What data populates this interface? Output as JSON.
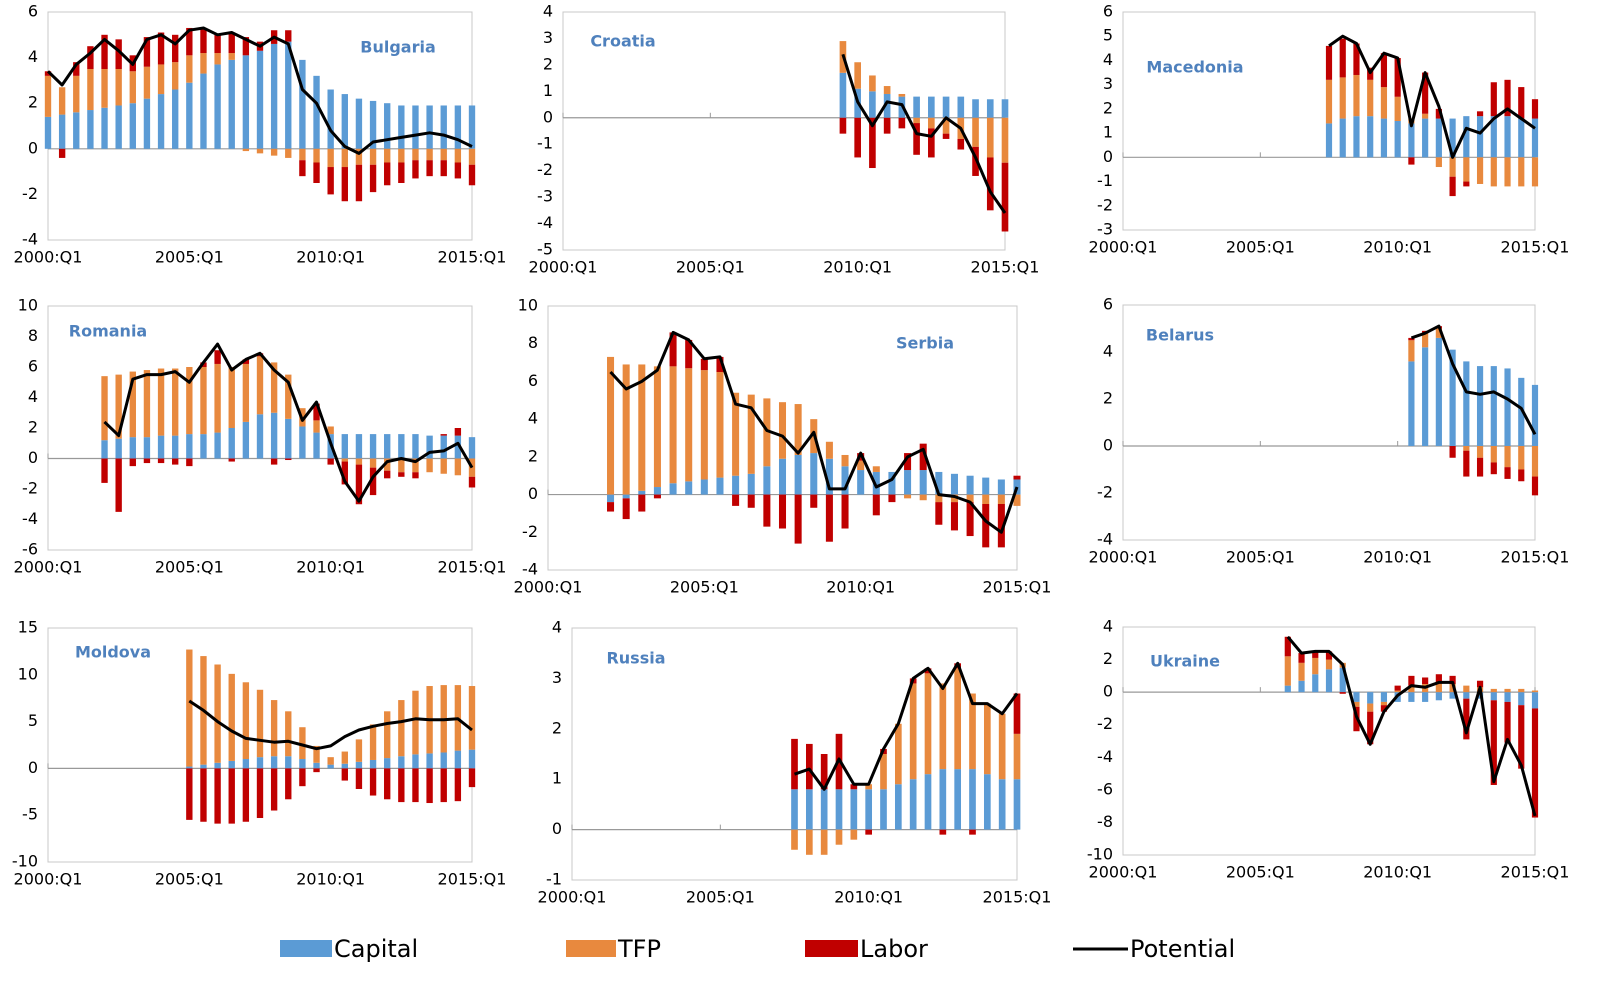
{
  "legend": [
    {
      "name": "Capital",
      "color": "#5b9bd5"
    },
    {
      "name": "TFP",
      "color": "#e8893e"
    },
    {
      "name": "Labor",
      "color": "#c00000"
    },
    {
      "name": "Potential",
      "color": "#000000"
    }
  ],
  "chart_data": [
    {
      "type": "bar",
      "title": "Bulgaria",
      "x": [
        2000,
        2000.5,
        2001,
        2001.5,
        2002,
        2002.5,
        2003,
        2003.5,
        2004,
        2004.5,
        2005,
        2005.5,
        2006,
        2006.5,
        2007,
        2007.5,
        2008,
        2008.5,
        2009,
        2009.5,
        2010,
        2010.5,
        2011,
        2011.5,
        2012,
        2012.5,
        2013,
        2013.5,
        2014,
        2014.5,
        2015
      ],
      "capital": [
        1.4,
        1.5,
        1.6,
        1.7,
        1.8,
        1.9,
        2.0,
        2.2,
        2.4,
        2.6,
        2.9,
        3.3,
        3.7,
        3.9,
        4.1,
        4.3,
        4.6,
        4.7,
        3.9,
        3.2,
        2.6,
        2.4,
        2.2,
        2.1,
        2.0,
        1.9,
        1.9,
        1.9,
        1.9,
        1.9,
        1.9
      ],
      "tfp": [
        1.8,
        1.2,
        1.6,
        1.8,
        1.7,
        1.6,
        1.4,
        1.4,
        1.3,
        1.2,
        1.2,
        0.9,
        0.5,
        0.3,
        -0.1,
        -0.2,
        -0.3,
        -0.4,
        -0.5,
        -0.6,
        -0.8,
        -0.8,
        -0.7,
        -0.7,
        -0.6,
        -0.6,
        -0.5,
        -0.5,
        -0.5,
        -0.6,
        -0.7
      ],
      "labor": [
        0.2,
        -0.4,
        0.6,
        1.0,
        1.5,
        1.3,
        0.7,
        1.3,
        1.4,
        1.2,
        1.2,
        1.1,
        0.8,
        0.9,
        0.8,
        0.4,
        0.6,
        0.5,
        -0.7,
        -0.9,
        -1.2,
        -1.5,
        -1.6,
        -1.2,
        -1.0,
        -0.9,
        -0.8,
        -0.7,
        -0.7,
        -0.7,
        -0.9
      ],
      "potential": [
        3.4,
        2.8,
        3.7,
        4.2,
        4.8,
        4.3,
        3.7,
        4.8,
        5.0,
        4.6,
        5.2,
        5.3,
        5.0,
        5.1,
        4.8,
        4.5,
        4.9,
        4.6,
        2.6,
        2.0,
        0.8,
        0.1,
        -0.2,
        0.3,
        0.4,
        0.5,
        0.6,
        0.7,
        0.6,
        0.4,
        0.1
      ],
      "xlim": [
        2000,
        2015
      ],
      "xticks": [
        {
          "value": 2000,
          "label": "2000:Q1"
        },
        {
          "value": 2005,
          "label": "2005:Q1"
        },
        {
          "value": 2010,
          "label": "2010:Q1"
        },
        {
          "value": 2015,
          "label": "2015:Q1"
        }
      ],
      "ylim": [
        -4,
        6
      ],
      "yticks": [
        -4,
        -2,
        0,
        2,
        4,
        6
      ]
    },
    {
      "type": "bar",
      "title": "Croatia",
      "x": [
        2009.5,
        2010,
        2010.5,
        2011,
        2011.5,
        2012,
        2012.5,
        2013,
        2013.5,
        2014,
        2014.5,
        2015
      ],
      "capital": [
        1.7,
        1.1,
        1.0,
        0.9,
        0.8,
        0.8,
        0.8,
        0.8,
        0.8,
        0.7,
        0.7,
        0.7
      ],
      "tfp": [
        1.2,
        1.0,
        0.6,
        0.3,
        0.1,
        -0.2,
        -0.4,
        -0.6,
        -0.8,
        -1.1,
        -1.5,
        -1.7
      ],
      "labor": [
        -0.6,
        -1.5,
        -1.9,
        -0.6,
        -0.4,
        -1.2,
        -1.1,
        -0.2,
        -0.4,
        -1.1,
        -2.0,
        -2.6
      ],
      "potential": [
        2.4,
        0.6,
        -0.3,
        0.6,
        0.5,
        -0.6,
        -0.7,
        0.0,
        -0.4,
        -1.5,
        -2.8,
        -3.6
      ],
      "xlim": [
        2000,
        2015
      ],
      "xticks": [
        {
          "value": 2000,
          "label": "2000:Q1"
        },
        {
          "value": 2005,
          "label": "2005:Q1"
        },
        {
          "value": 2010,
          "label": "2010:Q1"
        },
        {
          "value": 2015,
          "label": "2015:Q1"
        }
      ],
      "ylim": [
        -5,
        4
      ],
      "yticks": [
        -5,
        -4,
        -3,
        -2,
        -1,
        0,
        1,
        2,
        3,
        4
      ]
    },
    {
      "type": "bar",
      "title": "Macedonia",
      "x": [
        2007.5,
        2008,
        2008.5,
        2009,
        2009.5,
        2010,
        2010.5,
        2011,
        2011.5,
        2012,
        2012.5,
        2013,
        2013.5,
        2014,
        2014.5,
        2015
      ],
      "capital": [
        1.4,
        1.6,
        1.7,
        1.7,
        1.6,
        1.5,
        1.4,
        1.6,
        1.6,
        1.6,
        1.7,
        1.7,
        1.7,
        1.7,
        1.6,
        1.6
      ],
      "tfp": [
        1.8,
        1.7,
        1.7,
        1.5,
        1.3,
        1.0,
        0.2,
        0.2,
        -0.4,
        -0.8,
        -1.0,
        -1.1,
        -1.2,
        -1.2,
        -1.2,
        -1.2
      ],
      "labor": [
        1.4,
        1.6,
        1.3,
        0.5,
        1.4,
        1.6,
        -0.3,
        1.7,
        0.4,
        -0.8,
        -0.2,
        0.2,
        1.4,
        1.5,
        1.3,
        0.8
      ],
      "potential": [
        4.6,
        5.0,
        4.7,
        3.5,
        4.3,
        4.1,
        1.3,
        3.5,
        2.1,
        0.0,
        1.2,
        1.0,
        1.6,
        2.0,
        1.6,
        1.2
      ],
      "xlim": [
        2000,
        2015
      ],
      "xticks": [
        {
          "value": 2000,
          "label": "2000:Q1"
        },
        {
          "value": 2005,
          "label": "2005:Q1"
        },
        {
          "value": 2010,
          "label": "2010:Q1"
        },
        {
          "value": 2015,
          "label": "2015:Q1"
        }
      ],
      "ylim": [
        -3,
        6
      ],
      "yticks": [
        -3,
        -2,
        -1,
        0,
        1,
        2,
        3,
        4,
        5,
        6
      ]
    },
    {
      "type": "bar",
      "title": "Romania",
      "x": [
        2002,
        2002.5,
        2003,
        2003.5,
        2004,
        2004.5,
        2005,
        2005.5,
        2006,
        2006.5,
        2007,
        2007.5,
        2008,
        2008.5,
        2009,
        2009.5,
        2010,
        2010.5,
        2011,
        2011.5,
        2012,
        2012.5,
        2013,
        2013.5,
        2014,
        2014.5,
        2015
      ],
      "capital": [
        1.2,
        1.3,
        1.4,
        1.4,
        1.5,
        1.5,
        1.6,
        1.6,
        1.7,
        2.0,
        2.4,
        2.9,
        3.0,
        2.6,
        2.1,
        1.7,
        1.6,
        1.6,
        1.6,
        1.6,
        1.6,
        1.6,
        1.6,
        1.5,
        1.5,
        1.5,
        1.4
      ],
      "tfp": [
        4.2,
        4.2,
        4.3,
        4.4,
        4.4,
        4.4,
        4.4,
        4.4,
        4.5,
        4.0,
        3.8,
        3.8,
        3.3,
        2.9,
        1.2,
        0.8,
        0.5,
        -0.2,
        -0.4,
        -0.6,
        -0.8,
        -0.9,
        -0.9,
        -0.9,
        -1.0,
        -1.1,
        -1.2
      ],
      "labor": [
        -1.6,
        -3.5,
        -0.5,
        -0.3,
        -0.3,
        -0.4,
        -0.5,
        0.3,
        0.9,
        -0.2,
        0.3,
        0.2,
        -0.4,
        -0.1,
        0.0,
        1.1,
        -0.4,
        -1.5,
        -2.6,
        -1.8,
        -0.5,
        -0.3,
        -0.4,
        0.0,
        0.1,
        0.5,
        -0.7
      ],
      "potential": [
        2.4,
        1.5,
        5.2,
        5.5,
        5.5,
        5.7,
        5.0,
        6.3,
        7.5,
        5.8,
        6.5,
        6.9,
        5.8,
        5.0,
        2.5,
        3.7,
        1.0,
        -1.5,
        -2.8,
        -1.2,
        -0.2,
        0.0,
        -0.2,
        0.4,
        0.5,
        1.0,
        -0.6
      ],
      "xlim": [
        2000,
        2015
      ],
      "xticks": [
        {
          "value": 2000,
          "label": "2000:Q1"
        },
        {
          "value": 2005,
          "label": "2005:Q1"
        },
        {
          "value": 2010,
          "label": "2010:Q1"
        },
        {
          "value": 2015,
          "label": "2015:Q1"
        }
      ],
      "ylim": [
        -6,
        10
      ],
      "yticks": [
        -6,
        -4,
        -2,
        0,
        2,
        4,
        6,
        8,
        10
      ]
    },
    {
      "type": "bar",
      "title": "Serbia",
      "x": [
        2002,
        2002.5,
        2003,
        2003.5,
        2004,
        2004.5,
        2005,
        2005.5,
        2006,
        2006.5,
        2007,
        2007.5,
        2008,
        2008.5,
        2009,
        2009.5,
        2010,
        2010.5,
        2011,
        2011.5,
        2012,
        2012.5,
        2013,
        2013.5,
        2014,
        2014.5,
        2015
      ],
      "capital": [
        -0.4,
        -0.2,
        0.2,
        0.4,
        0.6,
        0.7,
        0.8,
        0.9,
        1.0,
        1.1,
        1.5,
        1.9,
        2.1,
        2.2,
        1.9,
        1.5,
        1.3,
        1.2,
        1.2,
        1.3,
        1.3,
        1.2,
        1.1,
        1.0,
        0.9,
        0.8,
        0.8
      ],
      "tfp": [
        7.3,
        6.9,
        6.7,
        6.4,
        6.2,
        6.0,
        5.8,
        5.6,
        4.4,
        4.2,
        3.6,
        3.0,
        2.7,
        1.8,
        0.9,
        0.6,
        0.5,
        0.3,
        0.0,
        -0.2,
        -0.3,
        -0.4,
        -0.4,
        -0.4,
        -0.5,
        -0.5,
        -0.6
      ],
      "labor": [
        -0.5,
        -1.1,
        -0.9,
        -0.2,
        1.8,
        1.5,
        0.6,
        0.8,
        -0.6,
        -0.7,
        -1.7,
        -1.8,
        -2.6,
        -0.7,
        -2.5,
        -1.8,
        0.4,
        -1.1,
        -0.4,
        0.9,
        1.4,
        -1.2,
        -1.5,
        -1.8,
        -2.3,
        -2.3,
        0.2
      ],
      "potential": [
        6.5,
        5.6,
        6.0,
        6.6,
        8.6,
        8.2,
        7.2,
        7.3,
        4.8,
        4.6,
        3.4,
        3.1,
        2.2,
        3.3,
        0.3,
        0.3,
        2.2,
        0.4,
        0.8,
        2.0,
        2.4,
        0.0,
        -0.1,
        -0.4,
        -1.4,
        -2.0,
        0.4
      ],
      "xlim": [
        2000,
        2015
      ],
      "xticks": [
        {
          "value": 2000,
          "label": "2000:Q1"
        },
        {
          "value": 2005,
          "label": "2005:Q1"
        },
        {
          "value": 2010,
          "label": "2010:Q1"
        },
        {
          "value": 2015,
          "label": "2015:Q1"
        }
      ],
      "ylim": [
        -4,
        10
      ],
      "yticks": [
        -4,
        -2,
        0,
        2,
        4,
        6,
        8,
        10
      ]
    },
    {
      "type": "bar",
      "title": "Belarus",
      "x": [
        2010.5,
        2011,
        2011.5,
        2012,
        2012.5,
        2013,
        2013.5,
        2014,
        2014.5,
        2015
      ],
      "capital": [
        3.6,
        4.2,
        4.6,
        4.1,
        3.6,
        3.4,
        3.4,
        3.3,
        2.9,
        2.6
      ],
      "tfp": [
        0.9,
        0.6,
        0.4,
        0.0,
        -0.2,
        -0.5,
        -0.7,
        -0.9,
        -1.0,
        -1.3
      ],
      "labor": [
        0.1,
        0.1,
        0.1,
        -0.5,
        -1.1,
        -0.8,
        -0.5,
        -0.5,
        -0.5,
        -0.8
      ],
      "potential": [
        4.6,
        4.8,
        5.1,
        3.5,
        2.3,
        2.2,
        2.3,
        2.0,
        1.6,
        0.5
      ],
      "xlim": [
        2000,
        2015
      ],
      "xticks": [
        {
          "value": 2000,
          "label": "2000:Q1"
        },
        {
          "value": 2005,
          "label": "2005:Q1"
        },
        {
          "value": 2010,
          "label": "2010:Q1"
        },
        {
          "value": 2015,
          "label": "2015:Q1"
        }
      ],
      "ylim": [
        -4,
        6
      ],
      "yticks": [
        -4,
        -2,
        0,
        2,
        4,
        6
      ]
    },
    {
      "type": "bar",
      "title": "Moldova",
      "x": [
        2005,
        2005.5,
        2006,
        2006.5,
        2007,
        2007.5,
        2008,
        2008.5,
        2009,
        2009.5,
        2010,
        2010.5,
        2011,
        2011.5,
        2012,
        2012.5,
        2013,
        2013.5,
        2014,
        2014.5,
        2015
      ],
      "capital": [
        0.2,
        0.4,
        0.6,
        0.8,
        1.0,
        1.2,
        1.3,
        1.3,
        1.0,
        0.6,
        0.4,
        0.5,
        0.7,
        0.9,
        1.1,
        1.3,
        1.5,
        1.6,
        1.7,
        1.9,
        2.0
      ],
      "tfp": [
        12.5,
        11.6,
        10.5,
        9.3,
        8.2,
        7.2,
        6.0,
        4.8,
        3.4,
        1.8,
        0.8,
        1.3,
        2.4,
        3.8,
        5.0,
        6.0,
        6.8,
        7.2,
        7.2,
        7.0,
        6.8
      ],
      "labor": [
        -5.5,
        -5.7,
        -5.9,
        -5.9,
        -5.7,
        -5.3,
        -4.5,
        -3.3,
        -1.9,
        -0.4,
        0.0,
        -1.3,
        -2.2,
        -2.9,
        -3.3,
        -3.6,
        -3.6,
        -3.7,
        -3.6,
        -3.5,
        -2.0
      ],
      "potential": [
        7.2,
        6.2,
        5.0,
        4.0,
        3.2,
        3.0,
        2.8,
        2.9,
        2.5,
        2.1,
        2.4,
        3.4,
        4.1,
        4.5,
        4.8,
        5.0,
        5.3,
        5.2,
        5.2,
        5.3,
        4.1
      ],
      "xlim": [
        2000,
        2015
      ],
      "xticks": [
        {
          "value": 2000,
          "label": "2000:Q1"
        },
        {
          "value": 2005,
          "label": "2005:Q1"
        },
        {
          "value": 2010,
          "label": "2010:Q1"
        },
        {
          "value": 2015,
          "label": "2015:Q1"
        }
      ],
      "ylim": [
        -10,
        15
      ],
      "yticks": [
        -10,
        -5,
        0,
        5,
        10,
        15
      ]
    },
    {
      "type": "bar",
      "title": "Russia",
      "x": [
        2007.5,
        2008,
        2008.5,
        2009,
        2009.5,
        2010,
        2010.5,
        2011,
        2011.5,
        2012,
        2012.5,
        2013,
        2013.5,
        2014,
        2014.5,
        2015
      ],
      "capital": [
        0.8,
        0.8,
        0.8,
        0.8,
        0.8,
        0.8,
        0.8,
        0.9,
        1.0,
        1.1,
        1.2,
        1.2,
        1.2,
        1.1,
        1.0,
        1.0
      ],
      "tfp": [
        -0.4,
        -0.5,
        -0.5,
        -0.3,
        -0.2,
        0.1,
        0.7,
        1.2,
        1.9,
        2.0,
        1.7,
        2.0,
        1.5,
        1.4,
        1.3,
        0.9
      ],
      "labor": [
        1.0,
        0.9,
        0.7,
        1.1,
        0.1,
        -0.1,
        0.1,
        0.0,
        0.1,
        0.1,
        -0.1,
        0.1,
        -0.1,
        0.0,
        0.0,
        0.8
      ],
      "potential": [
        1.1,
        1.2,
        0.8,
        1.4,
        0.9,
        0.9,
        1.6,
        2.1,
        3.0,
        3.2,
        2.8,
        3.3,
        2.5,
        2.5,
        2.3,
        2.7
      ],
      "xlim": [
        2000,
        2015
      ],
      "xticks": [
        {
          "value": 2000,
          "label": "2000:Q1"
        },
        {
          "value": 2005,
          "label": "2005:Q1"
        },
        {
          "value": 2010,
          "label": "2010:Q1"
        },
        {
          "value": 2015,
          "label": "2015:Q1"
        }
      ],
      "ylim": [
        -1,
        4
      ],
      "yticks": [
        -1,
        0,
        1,
        2,
        3,
        4
      ]
    },
    {
      "type": "bar",
      "title": "Ukraine",
      "x": [
        2006,
        2006.5,
        2007,
        2007.5,
        2008,
        2008.5,
        2009,
        2009.5,
        2010,
        2010.5,
        2011,
        2011.5,
        2012,
        2012.5,
        2013,
        2013.5,
        2014,
        2014.5,
        2015
      ],
      "capital": [
        0.4,
        0.7,
        1.1,
        1.4,
        1.5,
        -0.6,
        -0.7,
        -0.6,
        -0.6,
        -0.6,
        -0.6,
        -0.5,
        -0.4,
        -0.4,
        -0.4,
        -0.5,
        -0.6,
        -0.8,
        -1.0
      ],
      "tfp": [
        1.8,
        1.1,
        1.0,
        0.6,
        0.3,
        -0.3,
        -0.5,
        -0.2,
        0.1,
        0.4,
        0.5,
        0.6,
        0.5,
        0.4,
        0.3,
        0.2,
        0.2,
        0.2,
        0.1
      ],
      "labor": [
        1.2,
        0.6,
        0.4,
        0.5,
        -0.1,
        -1.5,
        -2.0,
        -0.4,
        0.3,
        0.6,
        0.4,
        0.5,
        0.5,
        -2.5,
        0.4,
        -5.2,
        -2.5,
        -3.9,
        -6.7
      ],
      "potential": [
        3.4,
        2.4,
        2.5,
        2.5,
        1.7,
        -1.5,
        -3.2,
        -1.2,
        -0.2,
        0.4,
        0.3,
        0.6,
        0.6,
        -2.5,
        0.3,
        -5.5,
        -2.9,
        -4.5,
        -7.6
      ],
      "xlim": [
        2000,
        2015
      ],
      "xticks": [
        {
          "value": 2000,
          "label": "2000:Q1"
        },
        {
          "value": 2005,
          "label": "2005:Q1"
        },
        {
          "value": 2010,
          "label": "2010:Q1"
        },
        {
          "value": 2015,
          "label": "2015:Q1"
        }
      ],
      "ylim": [
        -10,
        4
      ],
      "yticks": [
        -10,
        -8,
        -6,
        -4,
        -2,
        0,
        2,
        4
      ]
    }
  ]
}
